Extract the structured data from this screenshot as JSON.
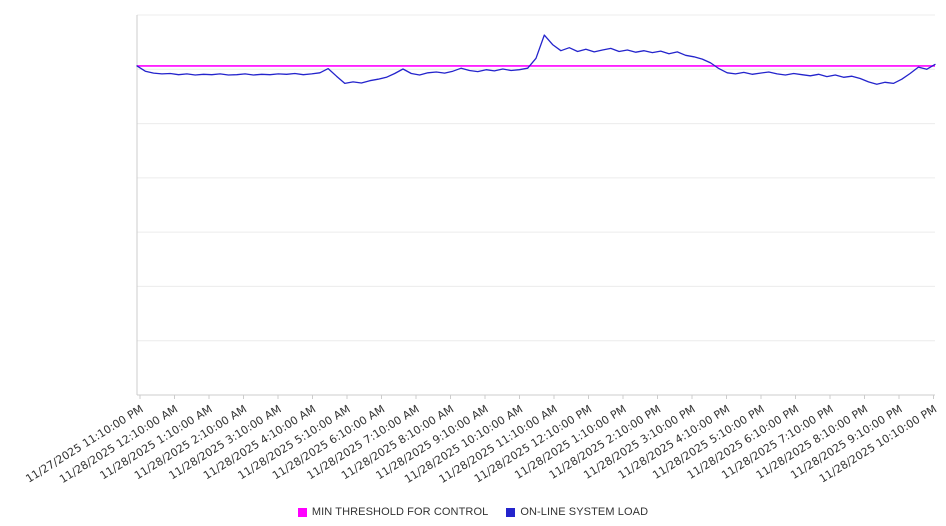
{
  "chart_data": {
    "type": "line",
    "title": "",
    "subtitle": "",
    "xlabel": "",
    "ylabel": "",
    "ylim": [
      0,
      100
    ],
    "grid": true,
    "legend_position": "bottom",
    "x_tick_labels": [
      "11/27/2025 11:10:00 PM",
      "11/28/2025 12:10:00 AM",
      "11/28/2025 1:10:00 AM",
      "11/28/2025 2:10:00 AM",
      "11/28/2025 3:10:00 AM",
      "11/28/2025 4:10:00 AM",
      "11/28/2025 5:10:00 AM",
      "11/28/2025 6:10:00 AM",
      "11/28/2025 7:10:00 AM",
      "11/28/2025 8:10:00 AM",
      "11/28/2025 9:10:00 AM",
      "11/28/2025 10:10:00 AM",
      "11/28/2025 11:10:00 AM",
      "11/28/2025 12:10:00 PM",
      "11/28/2025 1:10:00 PM",
      "11/28/2025 2:10:00 PM",
      "11/28/2025 3:10:00 PM",
      "11/28/2025 4:10:00 PM",
      "11/28/2025 5:10:00 PM",
      "11/28/2025 6:10:00 PM",
      "11/28/2025 7:10:00 PM",
      "11/28/2025 8:10:00 PM",
      "11/28/2025 9:10:00 PM",
      "11/28/2025 10:10:00 PM"
    ],
    "series": [
      {
        "name": "MIN THRESHOLD FOR CONTROL",
        "type": "constant",
        "value": 86.6,
        "color": "#ff00ff"
      },
      {
        "name": "ON-LINE SYSTEM LOAD",
        "type": "line",
        "color": "#2424cc",
        "values": [
          86.6,
          85.2,
          84.7,
          84.5,
          84.6,
          84.3,
          84.5,
          84.2,
          84.4,
          84.3,
          84.5,
          84.2,
          84.3,
          84.5,
          84.2,
          84.4,
          84.3,
          84.5,
          84.4,
          84.6,
          84.3,
          84.5,
          84.8,
          85.9,
          83.9,
          82.0,
          82.4,
          82.1,
          82.7,
          83.1,
          83.6,
          84.6,
          85.8,
          84.6,
          84.2,
          84.8,
          85.0,
          84.7,
          85.2,
          86.0,
          85.4,
          85.1,
          85.6,
          85.3,
          85.8,
          85.4,
          85.6,
          86.0,
          88.6,
          94.7,
          92.2,
          90.6,
          91.4,
          90.4,
          91.0,
          90.3,
          90.8,
          91.2,
          90.4,
          90.8,
          90.2,
          90.6,
          90.1,
          90.5,
          89.8,
          90.3,
          89.4,
          89.0,
          88.4,
          87.4,
          85.9,
          84.8,
          84.5,
          84.9,
          84.4,
          84.7,
          85.0,
          84.5,
          84.2,
          84.6,
          84.3,
          84.0,
          84.4,
          83.8,
          84.2,
          83.6,
          83.9,
          83.3,
          82.4,
          81.8,
          82.3,
          82.0,
          83.1,
          84.6,
          86.3,
          85.7,
          87.0
        ]
      }
    ]
  },
  "colors": {
    "grid": "#ececec",
    "axis": "#cccccc",
    "label_text": "#333333"
  }
}
